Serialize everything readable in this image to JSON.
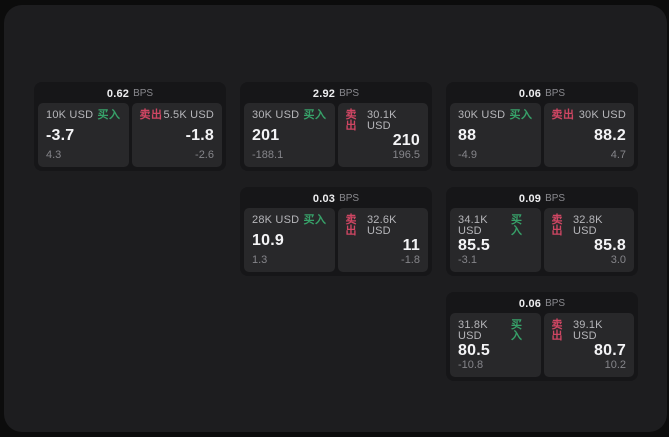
{
  "labels": {
    "bps_unit": "BPS",
    "buy": "买入",
    "sell": "卖出"
  },
  "colors": {
    "buy_green": "#37a169",
    "sell_red": "#cf4663",
    "window_bg": "#1d1d1f",
    "card_bg": "#161618",
    "tile_bg": "#28282a"
  },
  "cards": [
    {
      "bps": "0.62",
      "buy": {
        "amount": "10K USD",
        "main": "-3.7",
        "sub": "4.3"
      },
      "sell": {
        "amount": "5.5K USD",
        "main": "-1.8",
        "sub": "-2.6"
      }
    },
    {
      "bps": "2.92",
      "buy": {
        "amount": "30K USD",
        "main": "201",
        "sub": "-188.1"
      },
      "sell": {
        "amount": "30.1K USD",
        "main": "210",
        "sub": "196.5"
      }
    },
    {
      "bps": "0.06",
      "buy": {
        "amount": "30K USD",
        "main": "88",
        "sub": "-4.9"
      },
      "sell": {
        "amount": "30K USD",
        "main": "88.2",
        "sub": "4.7"
      }
    },
    {
      "bps": "0.03",
      "buy": {
        "amount": "28K USD",
        "main": "10.9",
        "sub": "1.3"
      },
      "sell": {
        "amount": "32.6K USD",
        "main": "11",
        "sub": "-1.8"
      }
    },
    {
      "bps": "0.09",
      "buy": {
        "amount": "34.1K USD",
        "main": "85.5",
        "sub": "-3.1"
      },
      "sell": {
        "amount": "32.8K USD",
        "main": "85.8",
        "sub": "3.0"
      }
    },
    {
      "bps": "0.06",
      "buy": {
        "amount": "31.8K USD",
        "main": "80.5",
        "sub": "-10.8"
      },
      "sell": {
        "amount": "39.1K USD",
        "main": "80.7",
        "sub": "10.2"
      }
    }
  ]
}
